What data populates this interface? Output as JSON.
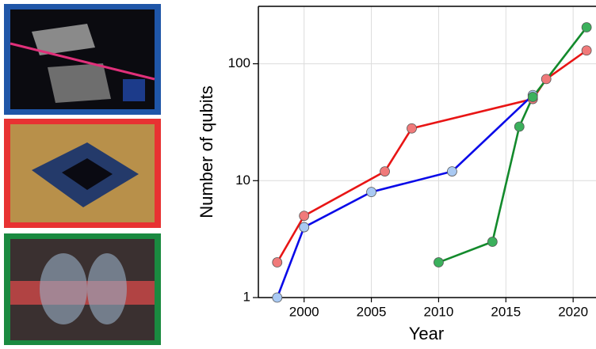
{
  "chart_data": {
    "type": "line",
    "x_label": "Year",
    "y_label": "Number of qubits",
    "log_y": true,
    "grid": true,
    "xlim": [
      1996.6,
      2021.7
    ],
    "xticks": [
      2000,
      2005,
      2010,
      2015,
      2020
    ],
    "ylim": [
      1,
      310
    ],
    "yticks": [
      1,
      10,
      100
    ],
    "series": [
      {
        "color": "#e81515",
        "marker_color": "#f07a7a",
        "x": [
          1998,
          2000,
          2006,
          2008,
          2017,
          2018,
          2021
        ],
        "values": [
          2,
          5,
          12,
          28,
          50,
          74,
          130
        ]
      },
      {
        "color": "#0a0ae8",
        "marker_color": "#a9c9f2",
        "x": [
          1998,
          2000,
          2005,
          2011,
          2017
        ],
        "values": [
          1,
          4,
          8,
          12,
          54
        ]
      },
      {
        "color": "#138a2c",
        "marker_color": "#3bb05c",
        "x": [
          2010,
          2014,
          2016,
          2017,
          2021
        ],
        "values": [
          2,
          3,
          29,
          52,
          205
        ]
      }
    ]
  }
}
